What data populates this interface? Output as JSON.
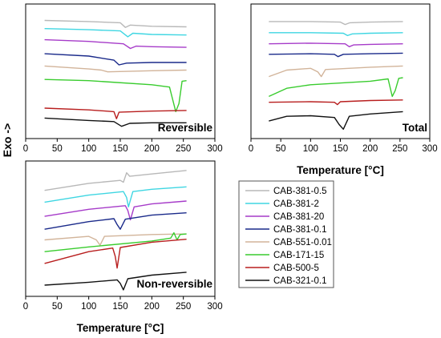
{
  "y_axis_label": "Exo ->",
  "legend": {
    "entries": [
      {
        "name": "CAB-381-0.5",
        "color": "#b8b8b8"
      },
      {
        "name": "CAB-381-2",
        "color": "#3fd6e2"
      },
      {
        "name": "CAB-381-20",
        "color": "#a63bc9"
      },
      {
        "name": "CAB-381-0.1",
        "color": "#1a2a8a"
      },
      {
        "name": "CAB-551-0.01",
        "color": "#d2b49a"
      },
      {
        "name": "CAB-171-15",
        "color": "#39cc2e"
      },
      {
        "name": "CAB-500-5",
        "color": "#b81e1e"
      },
      {
        "name": "CAB-321-0.1",
        "color": "#111111"
      }
    ]
  },
  "chart_data": [
    {
      "type": "line",
      "panel_label": "Reversible",
      "xlabel": "",
      "xlim": [
        0,
        300
      ],
      "xticks": [
        0,
        50,
        100,
        150,
        200,
        250,
        300
      ],
      "yticks": "none",
      "grid": false,
      "series": [
        {
          "name": "CAB-381-0.5",
          "x": [
            30,
            100,
            150,
            158,
            166,
            200,
            255
          ],
          "y": [
            9.6,
            9.5,
            9.4,
            9.0,
            9.2,
            9.1,
            9.05
          ]
        },
        {
          "name": "CAB-381-2",
          "x": [
            30,
            100,
            150,
            162,
            170,
            200,
            255
          ],
          "y": [
            8.9,
            8.8,
            8.7,
            8.2,
            8.5,
            8.4,
            8.35
          ]
        },
        {
          "name": "CAB-381-20",
          "x": [
            30,
            100,
            155,
            166,
            175,
            200,
            255
          ],
          "y": [
            7.95,
            7.8,
            7.6,
            7.2,
            7.4,
            7.35,
            7.3
          ]
        },
        {
          "name": "CAB-381-0.1",
          "x": [
            30,
            100,
            140,
            148,
            160,
            200,
            255
          ],
          "y": [
            6.75,
            6.55,
            6.2,
            5.8,
            5.95,
            6.0,
            6.0
          ]
        },
        {
          "name": "CAB-551-0.01",
          "x": [
            30,
            100,
            120,
            130,
            200,
            255
          ],
          "y": [
            5.7,
            5.45,
            5.35,
            5.2,
            5.3,
            5.35
          ]
        },
        {
          "name": "CAB-171-15",
          "x": [
            30,
            100,
            200,
            228,
            238,
            243,
            248,
            255
          ],
          "y": [
            4.55,
            4.45,
            4.1,
            3.9,
            1.8,
            2.5,
            4.4,
            4.45
          ]
        },
        {
          "name": "CAB-500-5",
          "x": [
            30,
            100,
            140,
            144,
            148,
            200,
            255
          ],
          "y": [
            2.1,
            1.95,
            1.8,
            1.2,
            1.75,
            1.85,
            1.9
          ]
        },
        {
          "name": "CAB-321-0.1",
          "x": [
            30,
            100,
            140,
            152,
            165,
            200,
            255
          ],
          "y": [
            1.25,
            1.05,
            0.95,
            0.55,
            0.8,
            0.85,
            0.85
          ]
        }
      ]
    },
    {
      "type": "line",
      "panel_label": "Total",
      "xlabel": "Temperature [°C]",
      "xlim": [
        0,
        300
      ],
      "xticks": [
        0,
        50,
        100,
        150,
        200,
        250,
        300
      ],
      "yticks": "none",
      "grid": false,
      "series": [
        {
          "name": "CAB-381-0.5",
          "x": [
            30,
            100,
            150,
            158,
            166,
            200,
            255
          ],
          "y": [
            9.5,
            9.5,
            9.45,
            9.25,
            9.4,
            9.45,
            9.5
          ]
        },
        {
          "name": "CAB-381-2",
          "x": [
            30,
            100,
            155,
            162,
            170,
            200,
            255
          ],
          "y": [
            8.55,
            8.55,
            8.5,
            8.3,
            8.45,
            8.5,
            8.55
          ]
        },
        {
          "name": "CAB-381-20",
          "x": [
            30,
            100,
            158,
            165,
            172,
            200,
            255
          ],
          "y": [
            7.6,
            7.65,
            7.6,
            7.35,
            7.5,
            7.55,
            7.6
          ]
        },
        {
          "name": "CAB-381-0.1",
          "x": [
            30,
            100,
            140,
            146,
            155,
            200,
            255
          ],
          "y": [
            6.7,
            6.75,
            6.7,
            6.5,
            6.7,
            6.75,
            6.8
          ]
        },
        {
          "name": "CAB-551-0.01",
          "x": [
            30,
            60,
            100,
            112,
            118,
            125,
            200,
            255
          ],
          "y": [
            4.8,
            5.35,
            5.5,
            5.2,
            4.8,
            5.4,
            5.6,
            5.7
          ]
        },
        {
          "name": "CAB-171-15",
          "x": [
            30,
            60,
            100,
            200,
            230,
            237,
            242,
            248,
            255
          ],
          "y": [
            3.1,
            3.8,
            4.1,
            4.4,
            4.6,
            3.1,
            3.6,
            4.65,
            4.7
          ]
        },
        {
          "name": "CAB-500-5",
          "x": [
            30,
            100,
            140,
            145,
            150,
            200,
            255
          ],
          "y": [
            2.6,
            2.65,
            2.6,
            2.4,
            2.65,
            2.75,
            2.8
          ]
        },
        {
          "name": "CAB-321-0.1",
          "x": [
            30,
            60,
            100,
            140,
            148,
            155,
            165,
            200,
            255
          ],
          "y": [
            1.0,
            1.4,
            1.45,
            1.3,
            0.7,
            0.3,
            1.4,
            1.6,
            1.8
          ]
        }
      ]
    },
    {
      "type": "line",
      "panel_label": "Non-reversible",
      "xlabel": "Temperature [°C]",
      "xlim": [
        0,
        300
      ],
      "xticks": [
        0,
        50,
        100,
        150,
        200,
        250,
        300
      ],
      "yticks": "none",
      "grid": false,
      "series": [
        {
          "name": "CAB-381-0.5",
          "x": [
            30,
            100,
            150,
            155,
            160,
            165,
            200,
            255
          ],
          "y": [
            8.5,
            9.1,
            9.35,
            9.2,
            10.0,
            9.7,
            9.9,
            10.2
          ]
        },
        {
          "name": "CAB-381-2",
          "x": [
            30,
            100,
            155,
            160,
            163,
            170,
            200,
            255
          ],
          "y": [
            7.5,
            8.1,
            8.4,
            7.9,
            7.1,
            8.4,
            8.6,
            8.8
          ]
        },
        {
          "name": "CAB-381-20",
          "x": [
            30,
            100,
            158,
            162,
            166,
            172,
            200,
            255
          ],
          "y": [
            6.3,
            6.9,
            7.2,
            6.8,
            6.0,
            7.1,
            7.35,
            7.6
          ]
        },
        {
          "name": "CAB-381-0.1",
          "x": [
            30,
            100,
            140,
            145,
            150,
            158,
            200,
            255
          ],
          "y": [
            5.2,
            5.85,
            6.1,
            5.6,
            5.2,
            6.05,
            6.4,
            6.6
          ]
        },
        {
          "name": "CAB-551-0.01",
          "x": [
            30,
            100,
            112,
            118,
            125,
            200,
            255
          ],
          "y": [
            4.3,
            4.6,
            4.3,
            3.85,
            4.6,
            4.75,
            4.8
          ]
        },
        {
          "name": "CAB-171-15",
          "x": [
            30,
            100,
            200,
            230,
            235,
            240,
            245,
            255
          ],
          "y": [
            3.3,
            3.7,
            4.2,
            4.45,
            4.9,
            4.3,
            4.75,
            4.8
          ]
        },
        {
          "name": "CAB-500-5",
          "x": [
            30,
            100,
            138,
            142,
            145,
            150,
            200,
            255
          ],
          "y": [
            2.3,
            3.3,
            3.6,
            2.9,
            1.9,
            3.65,
            4.1,
            4.35
          ]
        },
        {
          "name": "CAB-321-0.1",
          "x": [
            30,
            100,
            145,
            150,
            155,
            162,
            200,
            255
          ],
          "y": [
            0.45,
            0.7,
            0.9,
            0.6,
            0.05,
            1.0,
            1.3,
            1.55
          ]
        }
      ]
    }
  ]
}
